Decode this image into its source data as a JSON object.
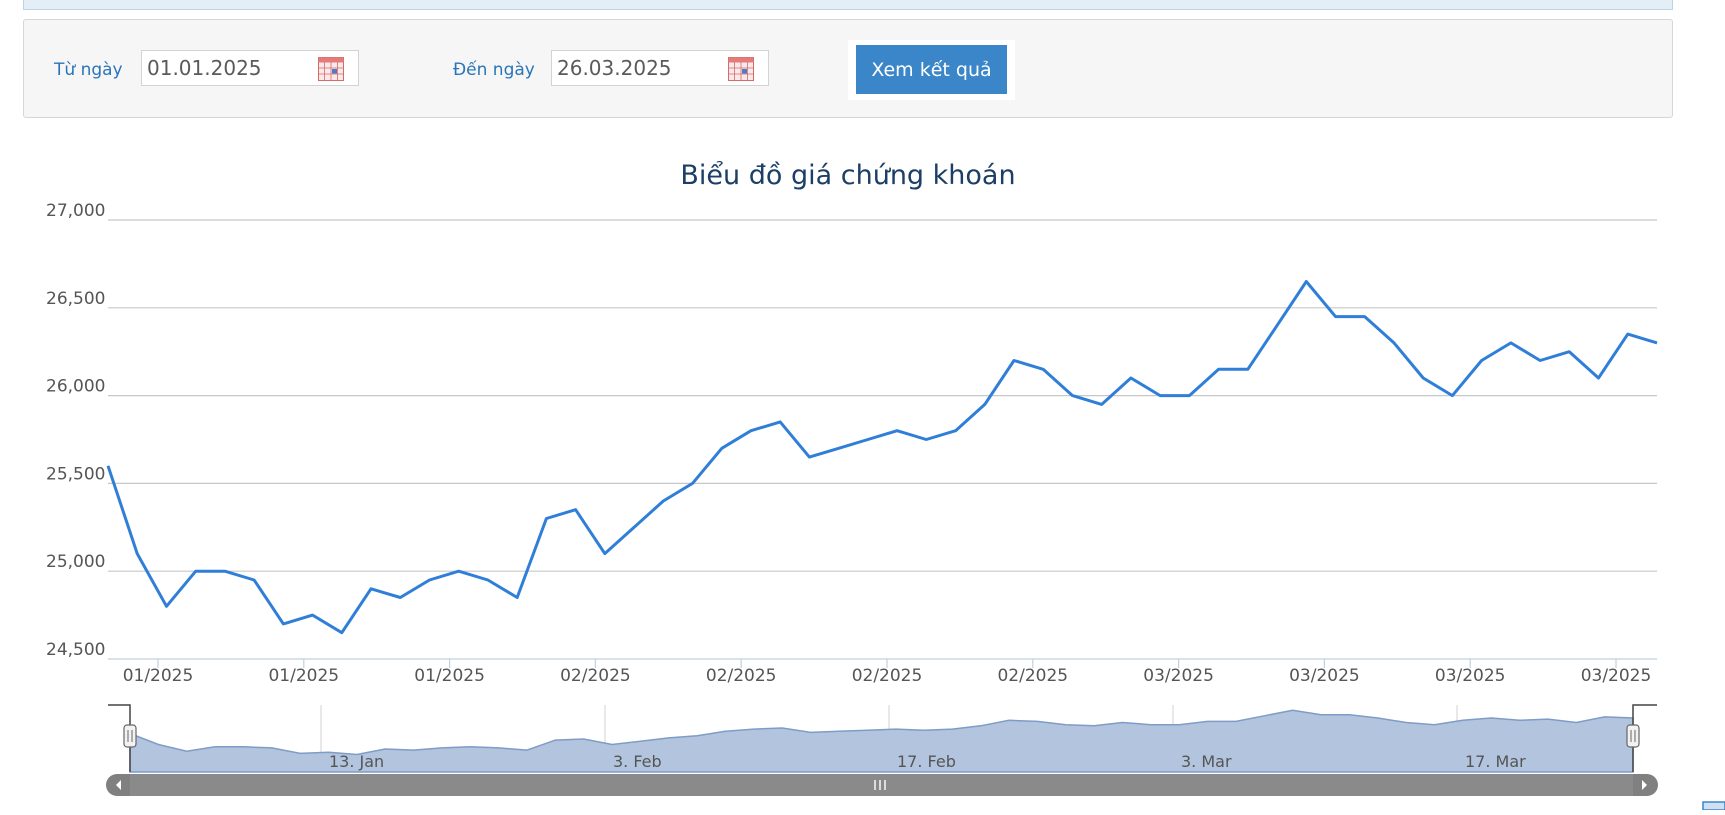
{
  "filter": {
    "from_label": "Từ ngày",
    "from_value": "01.01.2025",
    "to_label": "Đến ngày",
    "to_value": "26.03.2025",
    "submit_label": "Xem kết quả"
  },
  "chart_data": {
    "type": "line",
    "title": "Biểu đồ giá chứng khoán",
    "xlabel": "",
    "ylabel": "",
    "ylim": [
      24500,
      27000
    ],
    "y_ticks": [
      "24,500",
      "25,000",
      "25,500",
      "26,000",
      "26,500",
      "27,000"
    ],
    "y_tick_values": [
      24500,
      25000,
      25500,
      26000,
      26500,
      27000
    ],
    "x_tick_labels": [
      "01/2025",
      "01/2025",
      "01/2025",
      "02/2025",
      "02/2025",
      "02/2025",
      "02/2025",
      "03/2025",
      "03/2025",
      "03/2025",
      "03/2025"
    ],
    "grid": true,
    "line_color": "#2f7ed8",
    "series": [
      {
        "values": [
          25600,
          25100,
          24800,
          25000,
          25000,
          24950,
          24700,
          24750,
          24650,
          24900,
          24850,
          24950,
          25000,
          24950,
          24850,
          25300,
          25350,
          25100,
          25250,
          25400,
          25500,
          25700,
          25800,
          25850,
          25650,
          25700,
          25750,
          25800,
          25750,
          25800,
          25950,
          26200,
          26150,
          26000,
          25950,
          26100,
          26000,
          26000,
          26150,
          26150,
          26400,
          26650,
          26450,
          26450,
          26300,
          26100,
          26000,
          26200,
          26300,
          26200,
          26250,
          26100,
          26350,
          26300
        ]
      }
    ],
    "navigator": {
      "labels": [
        "13. Jan",
        "3. Feb",
        "17. Feb",
        "3. Mar",
        "17. Mar"
      ],
      "fill_color": "#b3c5de",
      "scrollbar_color": "#808080"
    }
  }
}
